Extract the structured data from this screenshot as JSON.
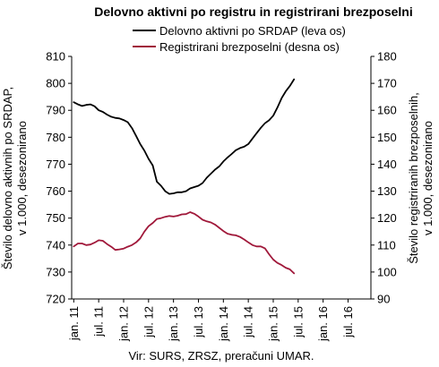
{
  "chart_data": {
    "type": "line",
    "title": "Delovno aktivni po registru in registrirani brezposelni",
    "source": "Vir: SURS, ZRSZ, preračuni UMAR.",
    "y_left": {
      "label_line1": "Število delovno aktivnih po SRDAP,",
      "label_line2": "v 1.000, desezonirano",
      "range": [
        720,
        810
      ],
      "ticks": [
        "720",
        "730",
        "740",
        "750",
        "760",
        "770",
        "780",
        "790",
        "800",
        "810"
      ]
    },
    "y_right": {
      "label_line1": "Število registriranih brezposelnih,",
      "label_line2": "v 1.000, desezonirano",
      "range": [
        90,
        180
      ],
      "ticks": [
        "90",
        "100",
        "110",
        "120",
        "130",
        "140",
        "150",
        "160",
        "170",
        "180"
      ]
    },
    "x_ticks": [
      "jan. 11",
      "jul. 11",
      "jan. 12",
      "jul. 12",
      "jan. 13",
      "jul. 13",
      "jan. 14",
      "jul. 14",
      "jan. 15",
      "jul. 15",
      "jan. 16",
      "jul. 16"
    ],
    "legend_position": "top",
    "series": [
      {
        "name": "Delovno aktivni po SRDAP (leva os)",
        "axis": "left",
        "color": "#000000",
        "start": "jan. 11",
        "values": [
          793.0,
          792.2,
          791.6,
          792.0,
          792.2,
          791.5,
          790.0,
          789.4,
          788.4,
          787.6,
          787.2,
          787.0,
          786.4,
          785.6,
          783.4,
          780.5,
          777.5,
          775.0,
          772.0,
          769.5,
          763.5,
          762.0,
          760.0,
          759.0,
          759.2,
          759.6,
          759.6,
          760.0,
          761.0,
          761.5,
          762.0,
          763.0,
          765.0,
          766.5,
          768.0,
          769.2,
          771.0,
          772.5,
          773.8,
          775.2,
          776.0,
          776.5,
          777.5,
          779.5,
          781.5,
          783.5,
          785.2,
          786.3,
          788.0,
          791.0,
          794.5,
          797.0,
          799.0,
          801.5
        ]
      },
      {
        "name": "Registrirani brezposelni (desna os)",
        "axis": "right",
        "color": "#a0183a",
        "start": "jan. 11",
        "values": [
          109.5,
          110.6,
          110.6,
          110.0,
          110.2,
          110.9,
          111.8,
          111.6,
          110.4,
          109.4,
          108.2,
          108.4,
          108.7,
          109.4,
          110.0,
          111.0,
          112.5,
          115.0,
          117.0,
          118.2,
          119.7,
          120.0,
          120.5,
          120.8,
          120.6,
          120.9,
          121.4,
          121.5,
          122.2,
          121.6,
          120.6,
          119.4,
          118.8,
          118.4,
          117.6,
          116.4,
          115.2,
          114.2,
          113.8,
          113.6,
          113.0,
          112.1,
          111.0,
          110.0,
          109.5,
          109.5,
          108.8,
          106.6,
          104.6,
          103.4,
          102.6,
          101.6,
          101.0,
          99.5
        ]
      }
    ]
  }
}
